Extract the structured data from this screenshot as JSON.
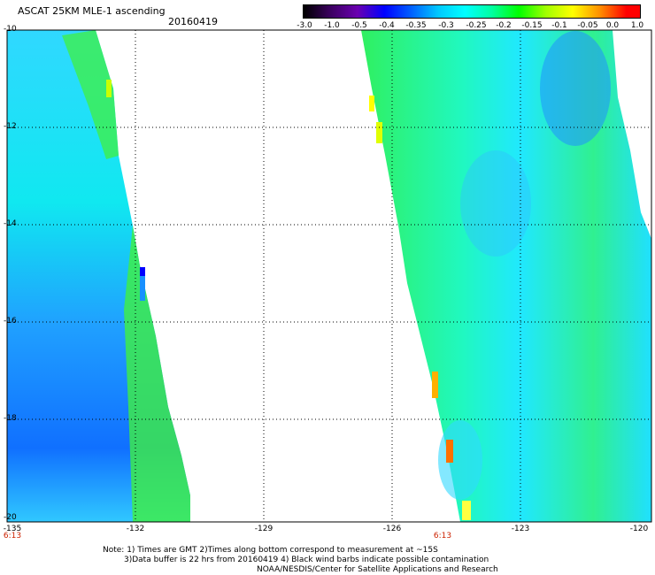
{
  "header": {
    "title": "ASCAT 25KM MLE-1 ascending",
    "date": "20160419"
  },
  "colorbar": {
    "labels": [
      "-3.0",
      "-1.0",
      "-0.5",
      "-0.4",
      "-0.35",
      "-0.3",
      "-0.25",
      "-0.2",
      "-0.15",
      "-0.1",
      "-0.05",
      "0.0",
      "1.0"
    ]
  },
  "axes": {
    "lat_labels": [
      "-10",
      "-12",
      "-14",
      "-16",
      "-18",
      "-20"
    ],
    "lon_labels": [
      "-135",
      "-132",
      "-129",
      "-126",
      "-123",
      "-120"
    ],
    "lat_range": [
      -20,
      -10
    ],
    "lon_range": [
      -135,
      -120
    ],
    "grid": true
  },
  "times": {
    "left": "6:13",
    "right": "6:13"
  },
  "notes": {
    "line1": "Note: 1) Times are GMT 2)Times along bottom correspond to measurement at ~15S",
    "line2": "3)Data buffer is 22 hrs from 20160419 4) Black wind barbs indicate possible contamination",
    "line3": "NOAA/NESDIS/Center for Satellite Applications and Research"
  }
}
